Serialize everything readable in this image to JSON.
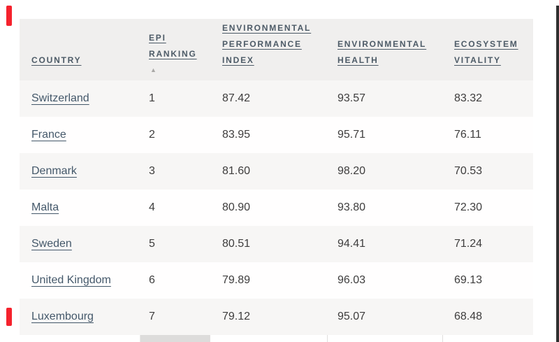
{
  "table": {
    "columns": [
      {
        "key": "country",
        "label_lines": [
          "COUNTRY"
        ]
      },
      {
        "key": "epi_ranking",
        "label_lines": [
          "EPI",
          "RANKING"
        ],
        "sorted": true,
        "sort_direction": "ascending"
      },
      {
        "key": "epi",
        "label_lines": [
          "ENVIRONMENTAL",
          "PERFORMANCE",
          "INDEX"
        ]
      },
      {
        "key": "env_health",
        "label_lines": [
          "ENVIRONMENTAL",
          "HEALTH"
        ]
      },
      {
        "key": "eco_vitality",
        "label_lines": [
          "ECOSYSTEM",
          "VITALITY"
        ]
      }
    ],
    "rows": [
      {
        "country": "Switzerland",
        "epi_ranking": "1",
        "epi": "87.42",
        "env_health": "93.57",
        "eco_vitality": "83.32"
      },
      {
        "country": "France",
        "epi_ranking": "2",
        "epi": "83.95",
        "env_health": "95.71",
        "eco_vitality": "76.11"
      },
      {
        "country": "Denmark",
        "epi_ranking": "3",
        "epi": "81.60",
        "env_health": "98.20",
        "eco_vitality": "70.53"
      },
      {
        "country": "Malta",
        "epi_ranking": "4",
        "epi": "80.90",
        "env_health": "93.80",
        "eco_vitality": "72.30"
      },
      {
        "country": "Sweden",
        "epi_ranking": "5",
        "epi": "80.51",
        "env_health": "94.41",
        "eco_vitality": "71.24"
      },
      {
        "country": "United Kingdom",
        "epi_ranking": "6",
        "epi": "79.89",
        "env_health": "96.03",
        "eco_vitality": "69.13"
      },
      {
        "country": "Luxembourg",
        "epi_ranking": "7",
        "epi": "79.12",
        "env_health": "95.07",
        "eco_vitality": "68.48"
      }
    ]
  },
  "icons": {
    "sort_ascending": "▲"
  },
  "colors": {
    "header_background": "#f0efee",
    "sorted_column_band": "#dddcdb",
    "striped_row": "#f7f6f5",
    "header_text": "#4d5b67",
    "country_link": "#44586a",
    "body_text": "#3e3d3d",
    "red_marker": "#f5222d",
    "edge_line": "#2f2f2f"
  }
}
